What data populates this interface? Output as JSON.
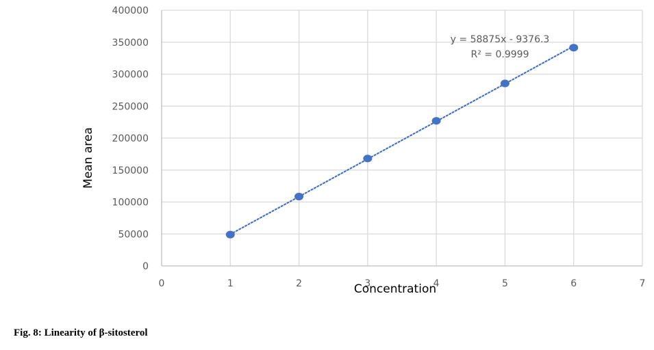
{
  "chart_data": {
    "type": "scatter",
    "xlabel": "Concentration",
    "ylabel": "Mean area",
    "xlim": [
      0,
      7
    ],
    "ylim": [
      0,
      400000
    ],
    "x_ticks": [
      "0",
      "1",
      "2",
      "3",
      "4",
      "5",
      "6",
      "7"
    ],
    "y_ticks": [
      "0",
      "50000",
      "100000",
      "150000",
      "200000",
      "250000",
      "300000",
      "350000",
      "400000"
    ],
    "grid": true,
    "series": [
      {
        "x": [
          1,
          2,
          3,
          4,
          5,
          6
        ],
        "y": [
          49000,
          108500,
          168000,
          227000,
          285500,
          341500
        ],
        "marker_color": "#4472C4"
      }
    ],
    "trendline": {
      "type": "linear",
      "slope": 58875,
      "intercept": -9376.3,
      "x_range": [
        1,
        6
      ],
      "style": "dotted",
      "color": "#4472C4",
      "equation_text": "y = 58875x - 9376.3",
      "r2_text": "R² = 0.9999"
    }
  },
  "caption": "Fig. 8: Linearity of β-sitosterol"
}
